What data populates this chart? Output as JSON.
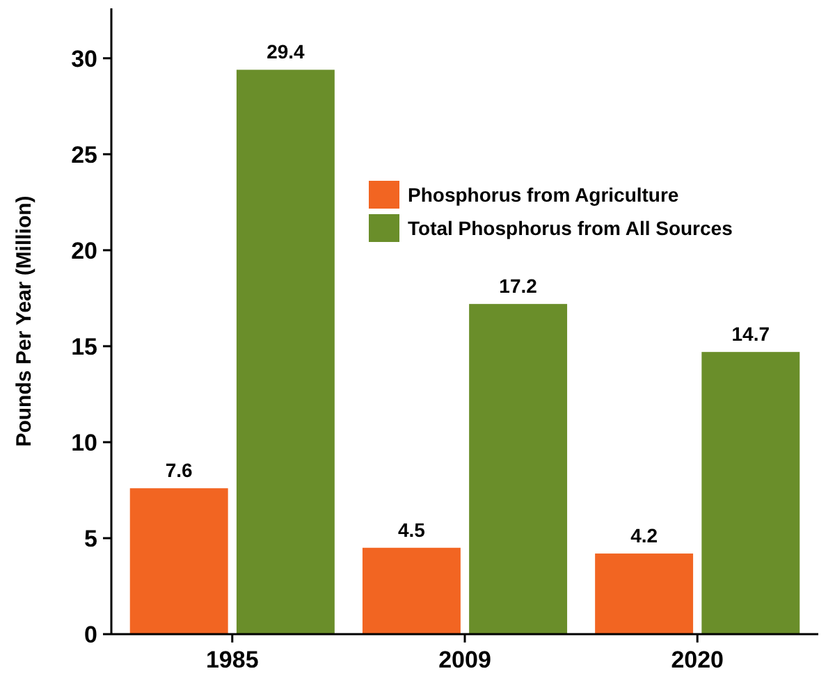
{
  "chart_data": {
    "type": "bar",
    "ylabel": "Pounds Per Year (Million)",
    "categories": [
      "1985",
      "2009",
      "2020"
    ],
    "series": [
      {
        "name": "Phosphorus from Agriculture",
        "color": "#f26522",
        "values": [
          7.6,
          4.5,
          4.2
        ]
      },
      {
        "name": "Total Phosphorus from All Sources",
        "color": "#6a8e2a",
        "values": [
          29.4,
          17.2,
          14.7
        ]
      }
    ],
    "ylim": [
      0,
      32.6
    ],
    "yticks": [
      0,
      5,
      10,
      15,
      20,
      25,
      30
    ],
    "data_labels": true,
    "legend": "top right",
    "grid": false
  }
}
